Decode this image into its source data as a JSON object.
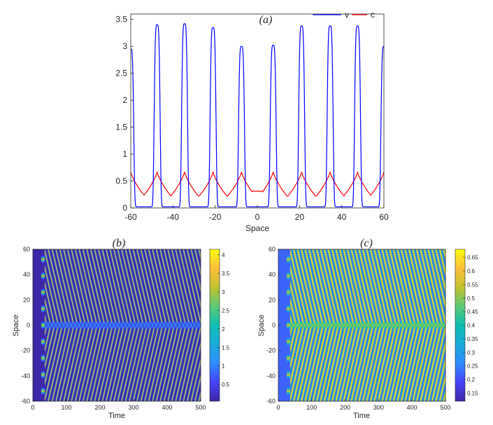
{
  "colors": {
    "v": "#0000ff",
    "c": "#ff0000",
    "axis": "#262626"
  },
  "chart_data": [
    {
      "id": "a",
      "type": "line",
      "title": "(a)",
      "xlabel": "Space",
      "ylabel": "",
      "xlim": [
        -60,
        60
      ],
      "ylim": [
        0,
        3.6
      ],
      "xticks": [
        -60,
        -40,
        -20,
        0,
        20,
        40,
        60
      ],
      "xtick_labels": [
        "-60",
        "-40",
        "-20",
        "0",
        "20",
        "40",
        "60"
      ],
      "yticks": [
        0,
        0.5,
        1,
        1.5,
        2,
        2.5,
        3,
        3.5
      ],
      "ytick_labels": [
        "0",
        "0.5",
        "1",
        "1.5",
        "2",
        "2.5",
        "3",
        "3.5"
      ],
      "legend": [
        "v",
        "c"
      ],
      "legend_position": "top-right",
      "series": [
        {
          "name": "v",
          "peaks": [
            {
              "x": -60,
              "y": 2.95
            },
            {
              "x": -47.5,
              "y": 3.4
            },
            {
              "x": -34.5,
              "y": 3.42
            },
            {
              "x": -21,
              "y": 3.35
            },
            {
              "x": -7.5,
              "y": 3.0
            },
            {
              "x": 7.5,
              "y": 3.02
            },
            {
              "x": 21,
              "y": 3.38
            },
            {
              "x": 34.5,
              "y": 3.38
            },
            {
              "x": 47.5,
              "y": 3.38
            },
            {
              "x": 60,
              "y": 3.0
            }
          ],
          "baseline": 0.02
        },
        {
          "name": "c",
          "peaks": [
            {
              "x": -60,
              "y": 0.67
            },
            {
              "x": -47.5,
              "y": 0.67
            },
            {
              "x": -34.5,
              "y": 0.67
            },
            {
              "x": -21,
              "y": 0.67
            },
            {
              "x": -7.5,
              "y": 0.67
            },
            {
              "x": 7.5,
              "y": 0.67
            },
            {
              "x": 21,
              "y": 0.67
            },
            {
              "x": 34.5,
              "y": 0.67
            },
            {
              "x": 47.5,
              "y": 0.67
            },
            {
              "x": 60,
              "y": 0.67
            }
          ],
          "min": 0.22,
          "center_plateau": 0.31
        }
      ]
    },
    {
      "id": "b",
      "type": "heatmap",
      "title": "(b)",
      "xlabel": "Time",
      "ylabel": "Space",
      "xlim": [
        0,
        500
      ],
      "ylim": [
        -60,
        60
      ],
      "xticks": [
        0,
        100,
        200,
        300,
        400,
        500
      ],
      "xtick_labels": [
        "0",
        "100",
        "200",
        "300",
        "400",
        "500"
      ],
      "yticks": [
        -60,
        -40,
        -20,
        0,
        20,
        40,
        60
      ],
      "ytick_labels": [
        "-60",
        "-40",
        "-20",
        "0",
        "20",
        "40",
        "60"
      ],
      "colorbar_range": [
        0.05,
        4.15
      ],
      "colorbar_ticks": [
        0.5,
        1,
        1.5,
        2,
        2.5,
        3,
        3.5,
        4
      ],
      "colorbar_labels": [
        "0.5",
        "1",
        "1.5",
        "2",
        "2.5",
        "3",
        "3.5",
        "4"
      ],
      "low": 0.05,
      "high": 4.1,
      "onset_time": 30
    },
    {
      "id": "c",
      "type": "heatmap",
      "title": "(c)",
      "xlabel": "Time",
      "ylabel": "Space",
      "xlim": [
        0,
        500
      ],
      "ylim": [
        -60,
        60
      ],
      "xticks": [
        0,
        100,
        200,
        300,
        400,
        500
      ],
      "xtick_labels": [
        "0",
        "100",
        "200",
        "300",
        "400",
        "500"
      ],
      "yticks": [
        -60,
        -40,
        -20,
        0,
        20,
        40,
        60
      ],
      "ytick_labels": [
        "-60",
        "-40",
        "-20",
        "0",
        "20",
        "40",
        "60"
      ],
      "colorbar_range": [
        0.12,
        0.68
      ],
      "colorbar_ticks": [
        0.15,
        0.2,
        0.25,
        0.3,
        0.35,
        0.4,
        0.45,
        0.5,
        0.55,
        0.6,
        0.65
      ],
      "colorbar_labels": [
        "0.15",
        "0.2",
        "0.25",
        "0.3",
        "0.35",
        "0.4",
        "0.45",
        "0.5",
        "0.55",
        "0.6",
        "0.65"
      ],
      "low": 0.22,
      "high": 0.67,
      "onset_time": 30
    }
  ]
}
